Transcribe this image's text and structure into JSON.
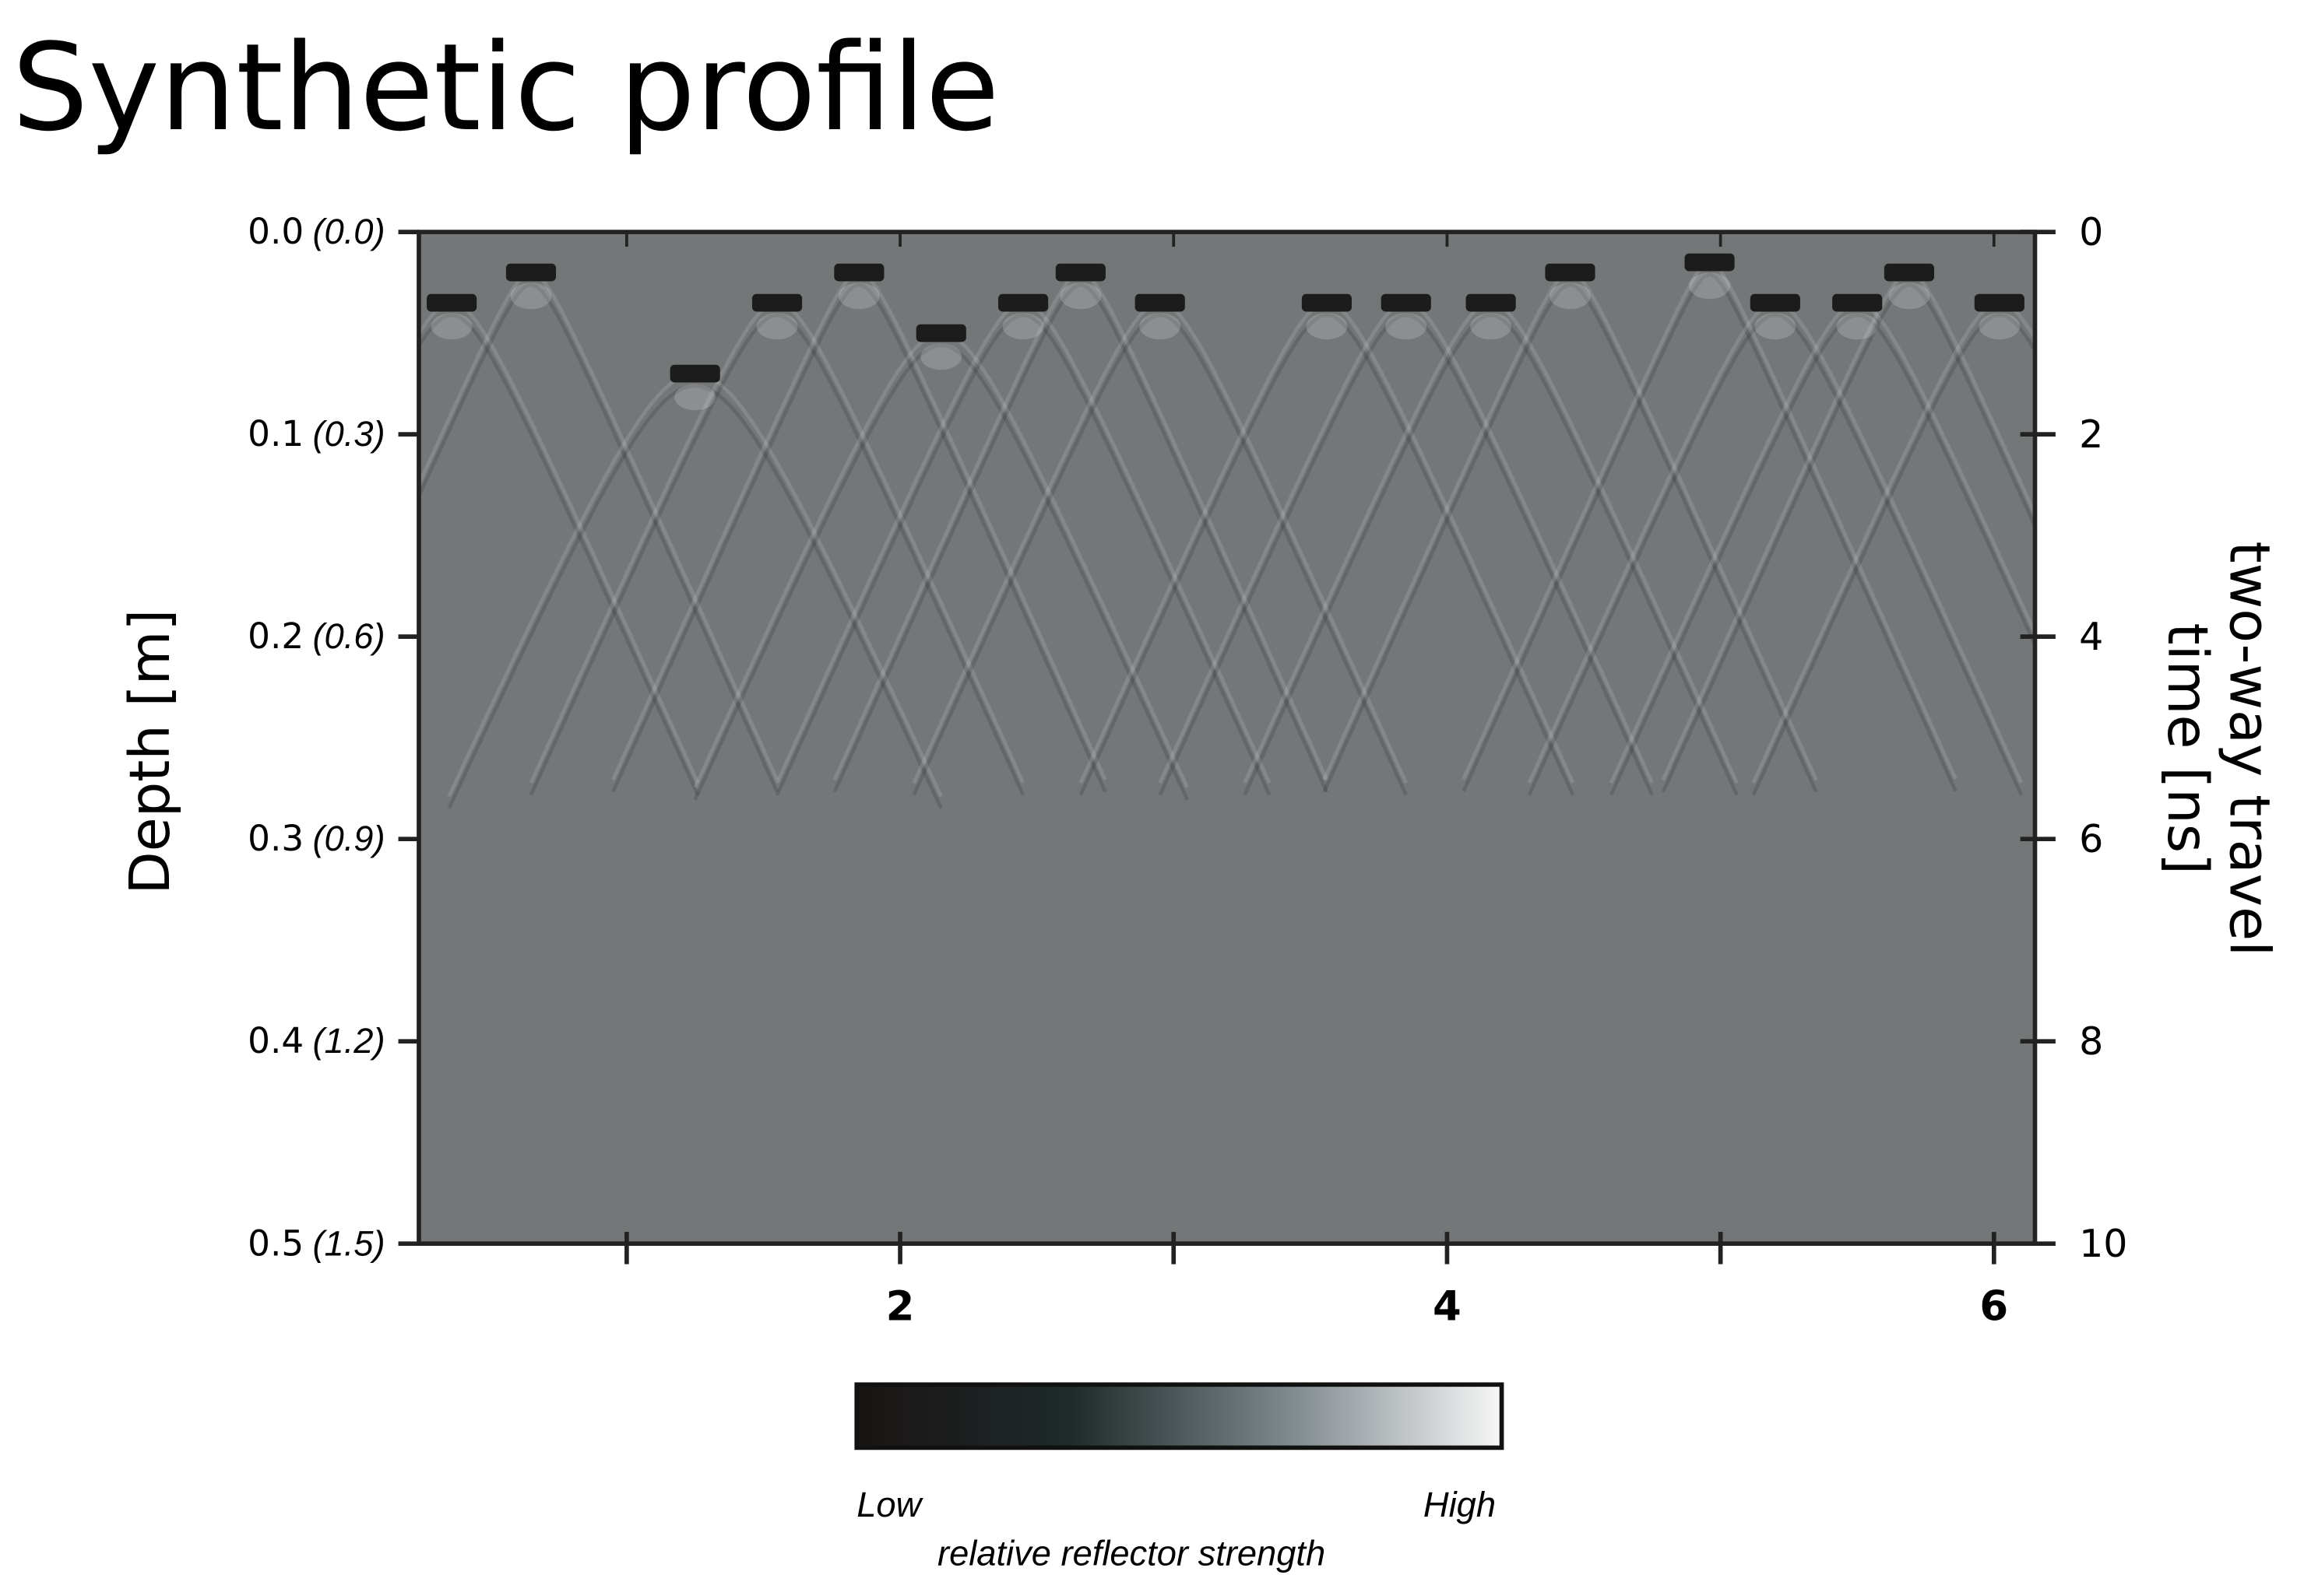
{
  "chart_data": {
    "type": "radargram",
    "title": "Synthetic profile",
    "ylabel": "Depth [m]",
    "y2label_lines": [
      "two-way travel",
      "time [ns]"
    ],
    "xlim": [
      0.24,
      6.15
    ],
    "xticks": [
      2,
      4,
      6
    ],
    "xminor_ticks": [
      1,
      3,
      5
    ],
    "ylim": [
      0,
      0.5
    ],
    "yticks": [
      {
        "value": 0,
        "label": "0.0"
      },
      {
        "value": 0.1,
        "label": "0.1"
      },
      {
        "value": 0.2,
        "label": "0.2"
      },
      {
        "value": 0.3,
        "label": "0.3"
      },
      {
        "value": 0.4,
        "label": "0.4"
      },
      {
        "value": 0.5,
        "label": "0.5"
      }
    ],
    "ytick_alt_labels": [
      "(0.0)",
      "(0.3)",
      "(0.6)",
      "(0.9)",
      "(1.2)",
      "(1.5)"
    ],
    "y2lim": [
      0,
      10
    ],
    "y2ticks": [
      0,
      2,
      4,
      6,
      8,
      10
    ],
    "background_color": "#737778",
    "reflector_color": "#1c1c1c",
    "reflectors": {
      "x": [
        0.36,
        0.65,
        1.25,
        1.55,
        1.85,
        2.15,
        2.45,
        2.66,
        2.95,
        3.56,
        3.85,
        4.16,
        4.45,
        4.96,
        5.2,
        5.5,
        5.69,
        6.02
      ],
      "time": [
        0.7,
        0.4,
        1.4,
        0.7,
        0.4,
        1.0,
        0.7,
        0.4,
        0.7,
        0.7,
        0.7,
        0.7,
        0.4,
        0.3,
        0.7,
        0.7,
        0.4,
        0.7
      ]
    },
    "colorbar": {
      "colors": [
        "#1a1414",
        "#1f2a2a",
        "#7d878c",
        "#f7f7f7"
      ],
      "low_label": "Low",
      "high_label": "High",
      "title": "relative reflector strength"
    }
  }
}
